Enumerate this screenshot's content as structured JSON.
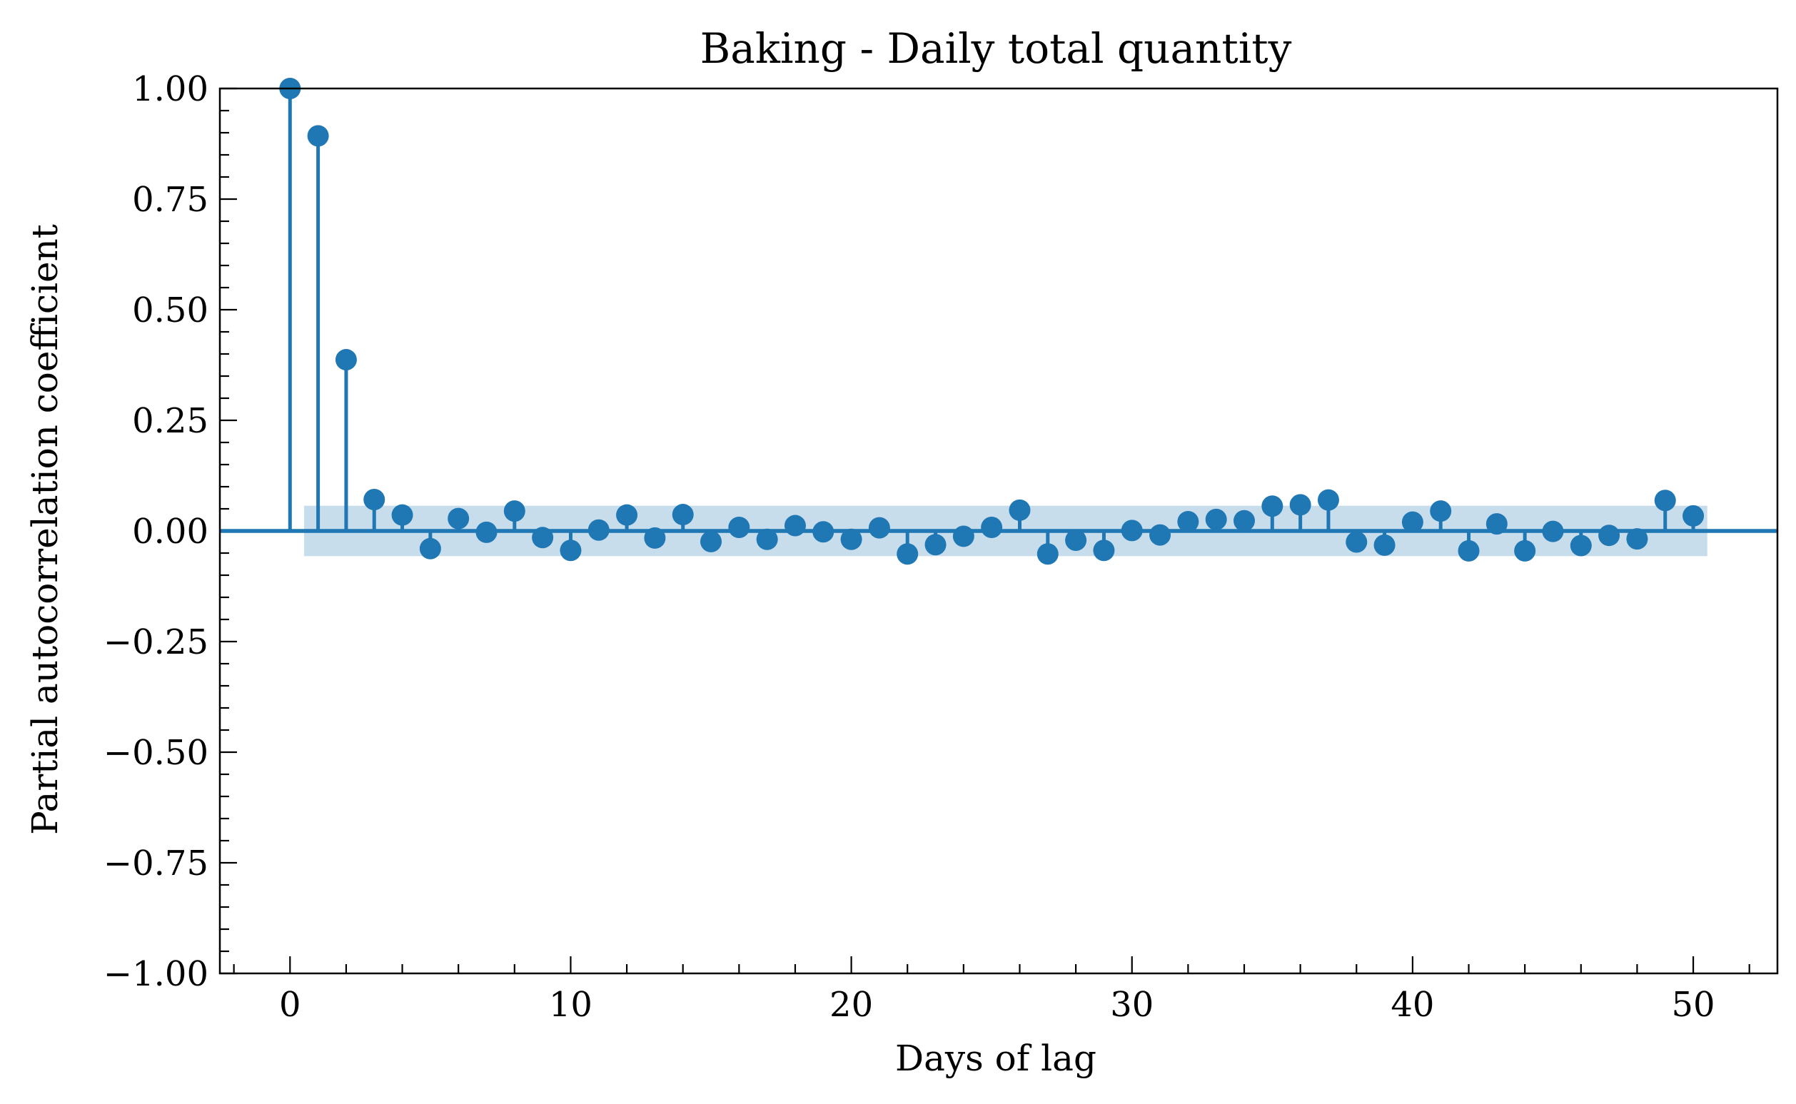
{
  "chart_data": {
    "type": "stem",
    "title": "Baking - Daily total quantity",
    "xlabel": "Days of lag",
    "ylabel": "Partial autocorrelation coefficient",
    "xlim": [
      -2.5,
      53
    ],
    "ylim": [
      -1.0,
      1.0
    ],
    "xticks": [
      0,
      10,
      20,
      30,
      40,
      50
    ],
    "yticks": [
      -1.0,
      -0.75,
      -0.5,
      -0.25,
      0.0,
      0.25,
      0.5,
      0.75,
      1.0
    ],
    "xtick_labels": [
      "0",
      "10",
      "20",
      "30",
      "40",
      "50"
    ],
    "ytick_labels": [
      "−1.00",
      "−0.75",
      "−0.50",
      "−0.25",
      "0.00",
      "0.25",
      "0.50",
      "0.75",
      "1.00"
    ],
    "confidence_band": {
      "lower": -0.057,
      "upper": 0.057,
      "x_range": [
        0.5,
        50.5
      ]
    },
    "lags": [
      0,
      1,
      2,
      3,
      4,
      5,
      6,
      7,
      8,
      9,
      10,
      11,
      12,
      13,
      14,
      15,
      16,
      17,
      18,
      19,
      20,
      21,
      22,
      23,
      24,
      25,
      26,
      27,
      28,
      29,
      30,
      31,
      32,
      33,
      34,
      35,
      36,
      37,
      38,
      39,
      40,
      41,
      42,
      43,
      44,
      45,
      46,
      47,
      48,
      49,
      50
    ],
    "values": [
      1.0,
      0.893,
      0.387,
      0.071,
      0.036,
      -0.04,
      0.028,
      -0.003,
      0.045,
      -0.015,
      -0.044,
      0.002,
      0.036,
      -0.016,
      0.037,
      -0.024,
      0.008,
      -0.019,
      0.012,
      -0.002,
      -0.019,
      0.007,
      -0.052,
      -0.031,
      -0.012,
      0.008,
      0.047,
      -0.052,
      -0.021,
      -0.044,
      0.001,
      -0.009,
      0.021,
      0.026,
      0.023,
      0.056,
      0.059,
      0.07,
      -0.025,
      -0.032,
      0.02,
      0.045,
      -0.045,
      0.016,
      -0.045,
      -0.001,
      -0.033,
      -0.01,
      -0.018,
      0.069,
      0.034
    ],
    "grid": false,
    "colors": {
      "series": "#1f77b4",
      "band": "#1f77b4"
    }
  }
}
